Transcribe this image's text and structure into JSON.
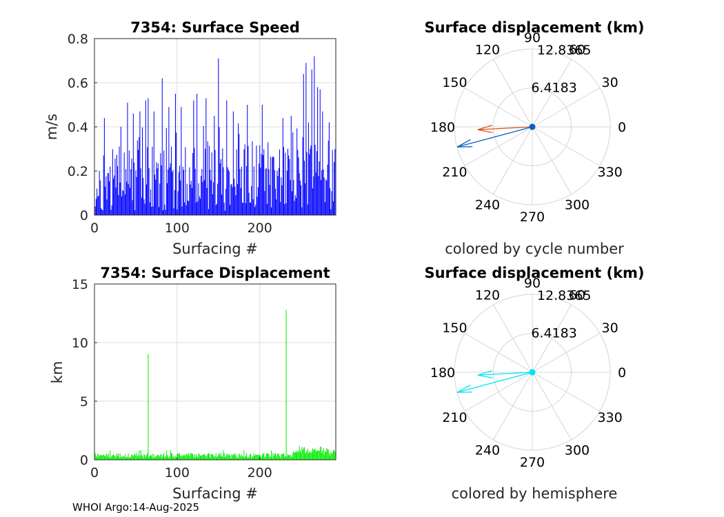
{
  "chart_data": [
    {
      "type": "bar",
      "title": "7354: Surface Speed",
      "xlabel": "Surfacing #",
      "ylabel": "m/s",
      "xlim": [
        0,
        292
      ],
      "ylim": [
        0,
        0.8
      ],
      "xticks": [
        "0",
        "100",
        "200"
      ],
      "xtick_values": [
        0,
        100,
        200
      ],
      "yticks": [
        "0",
        "0.2",
        "0.4",
        "0.6",
        "0.8"
      ],
      "ytick_values": [
        0,
        0.2,
        0.4,
        0.6,
        0.8
      ],
      "grid": true,
      "color": "#0000ff",
      "values_note": "speed per surfacing 1..291, estimated from gridlines",
      "spikes": [
        [
          12,
          0.44
        ],
        [
          40,
          0.51
        ],
        [
          47,
          0.46
        ],
        [
          55,
          0.47
        ],
        [
          62,
          0.52
        ],
        [
          65,
          0.53
        ],
        [
          72,
          0.47
        ],
        [
          82,
          0.62
        ],
        [
          90,
          0.49
        ],
        [
          98,
          0.55
        ],
        [
          105,
          0.49
        ],
        [
          120,
          0.52
        ],
        [
          124,
          0.55
        ],
        [
          135,
          0.53
        ],
        [
          145,
          0.45
        ],
        [
          150,
          0.71
        ],
        [
          160,
          0.52
        ],
        [
          168,
          0.47
        ],
        [
          185,
          0.5
        ],
        [
          203,
          0.5
        ],
        [
          228,
          0.44
        ],
        [
          238,
          0.45
        ],
        [
          253,
          0.64
        ],
        [
          256,
          0.69
        ],
        [
          263,
          0.66
        ],
        [
          266,
          0.72
        ],
        [
          270,
          0.58
        ],
        [
          273,
          0.57
        ],
        [
          276,
          0.47
        ],
        [
          284,
          0.42
        ]
      ]
    },
    {
      "type": "bar",
      "title": "7354: Surface Displacement",
      "xlabel": "Surfacing #",
      "ylabel": "km",
      "xlim": [
        0,
        292
      ],
      "ylim": [
        0,
        15
      ],
      "xticks": [
        "0",
        "100",
        "200"
      ],
      "xtick_values": [
        0,
        100,
        200
      ],
      "yticks": [
        "0",
        "5",
        "10",
        "15"
      ],
      "ytick_values": [
        0,
        5,
        10,
        15
      ],
      "grid": true,
      "color": "#00ee00",
      "spikes": [
        [
          65,
          9.0
        ],
        [
          232,
          12.8
        ]
      ]
    },
    {
      "type": "polar",
      "title": "Surface displacement (km)",
      "caption": "colored by cycle number",
      "rmax": 12.8365,
      "r_tick_labels": [
        "6.4183",
        "12.8365"
      ],
      "r_tick_values": [
        6.4183,
        12.8365
      ],
      "angle_tick_values": [
        0,
        30,
        60,
        90,
        120,
        150,
        180,
        210,
        240,
        270,
        300,
        330
      ],
      "angle_tick_labels": [
        "0",
        "30",
        "60",
        "90",
        "120",
        "150",
        "180",
        "210",
        "240",
        "270",
        "300",
        "330"
      ],
      "arrows": [
        {
          "angle": 183,
          "r": 9.0,
          "color": "#d95319"
        },
        {
          "angle": 195,
          "r": 12.8,
          "color": "#0a5fbf"
        }
      ]
    },
    {
      "type": "polar",
      "title": "Surface displacement (km)",
      "caption": "colored by hemisphere",
      "rmax": 12.8365,
      "r_tick_labels": [
        "6.4183",
        "12.8365"
      ],
      "r_tick_values": [
        6.4183,
        12.8365
      ],
      "angle_tick_values": [
        0,
        30,
        60,
        90,
        120,
        150,
        180,
        210,
        240,
        270,
        300,
        330
      ],
      "angle_tick_labels": [
        "0",
        "30",
        "60",
        "90",
        "120",
        "150",
        "180",
        "210",
        "240",
        "270",
        "300",
        "330"
      ],
      "arrows": [
        {
          "angle": 183,
          "r": 9.0,
          "color": "#00e5ee"
        },
        {
          "angle": 195,
          "r": 12.8,
          "color": "#00e5ee"
        }
      ]
    }
  ],
  "footer": "WHOI Argo:14-Aug-2025"
}
